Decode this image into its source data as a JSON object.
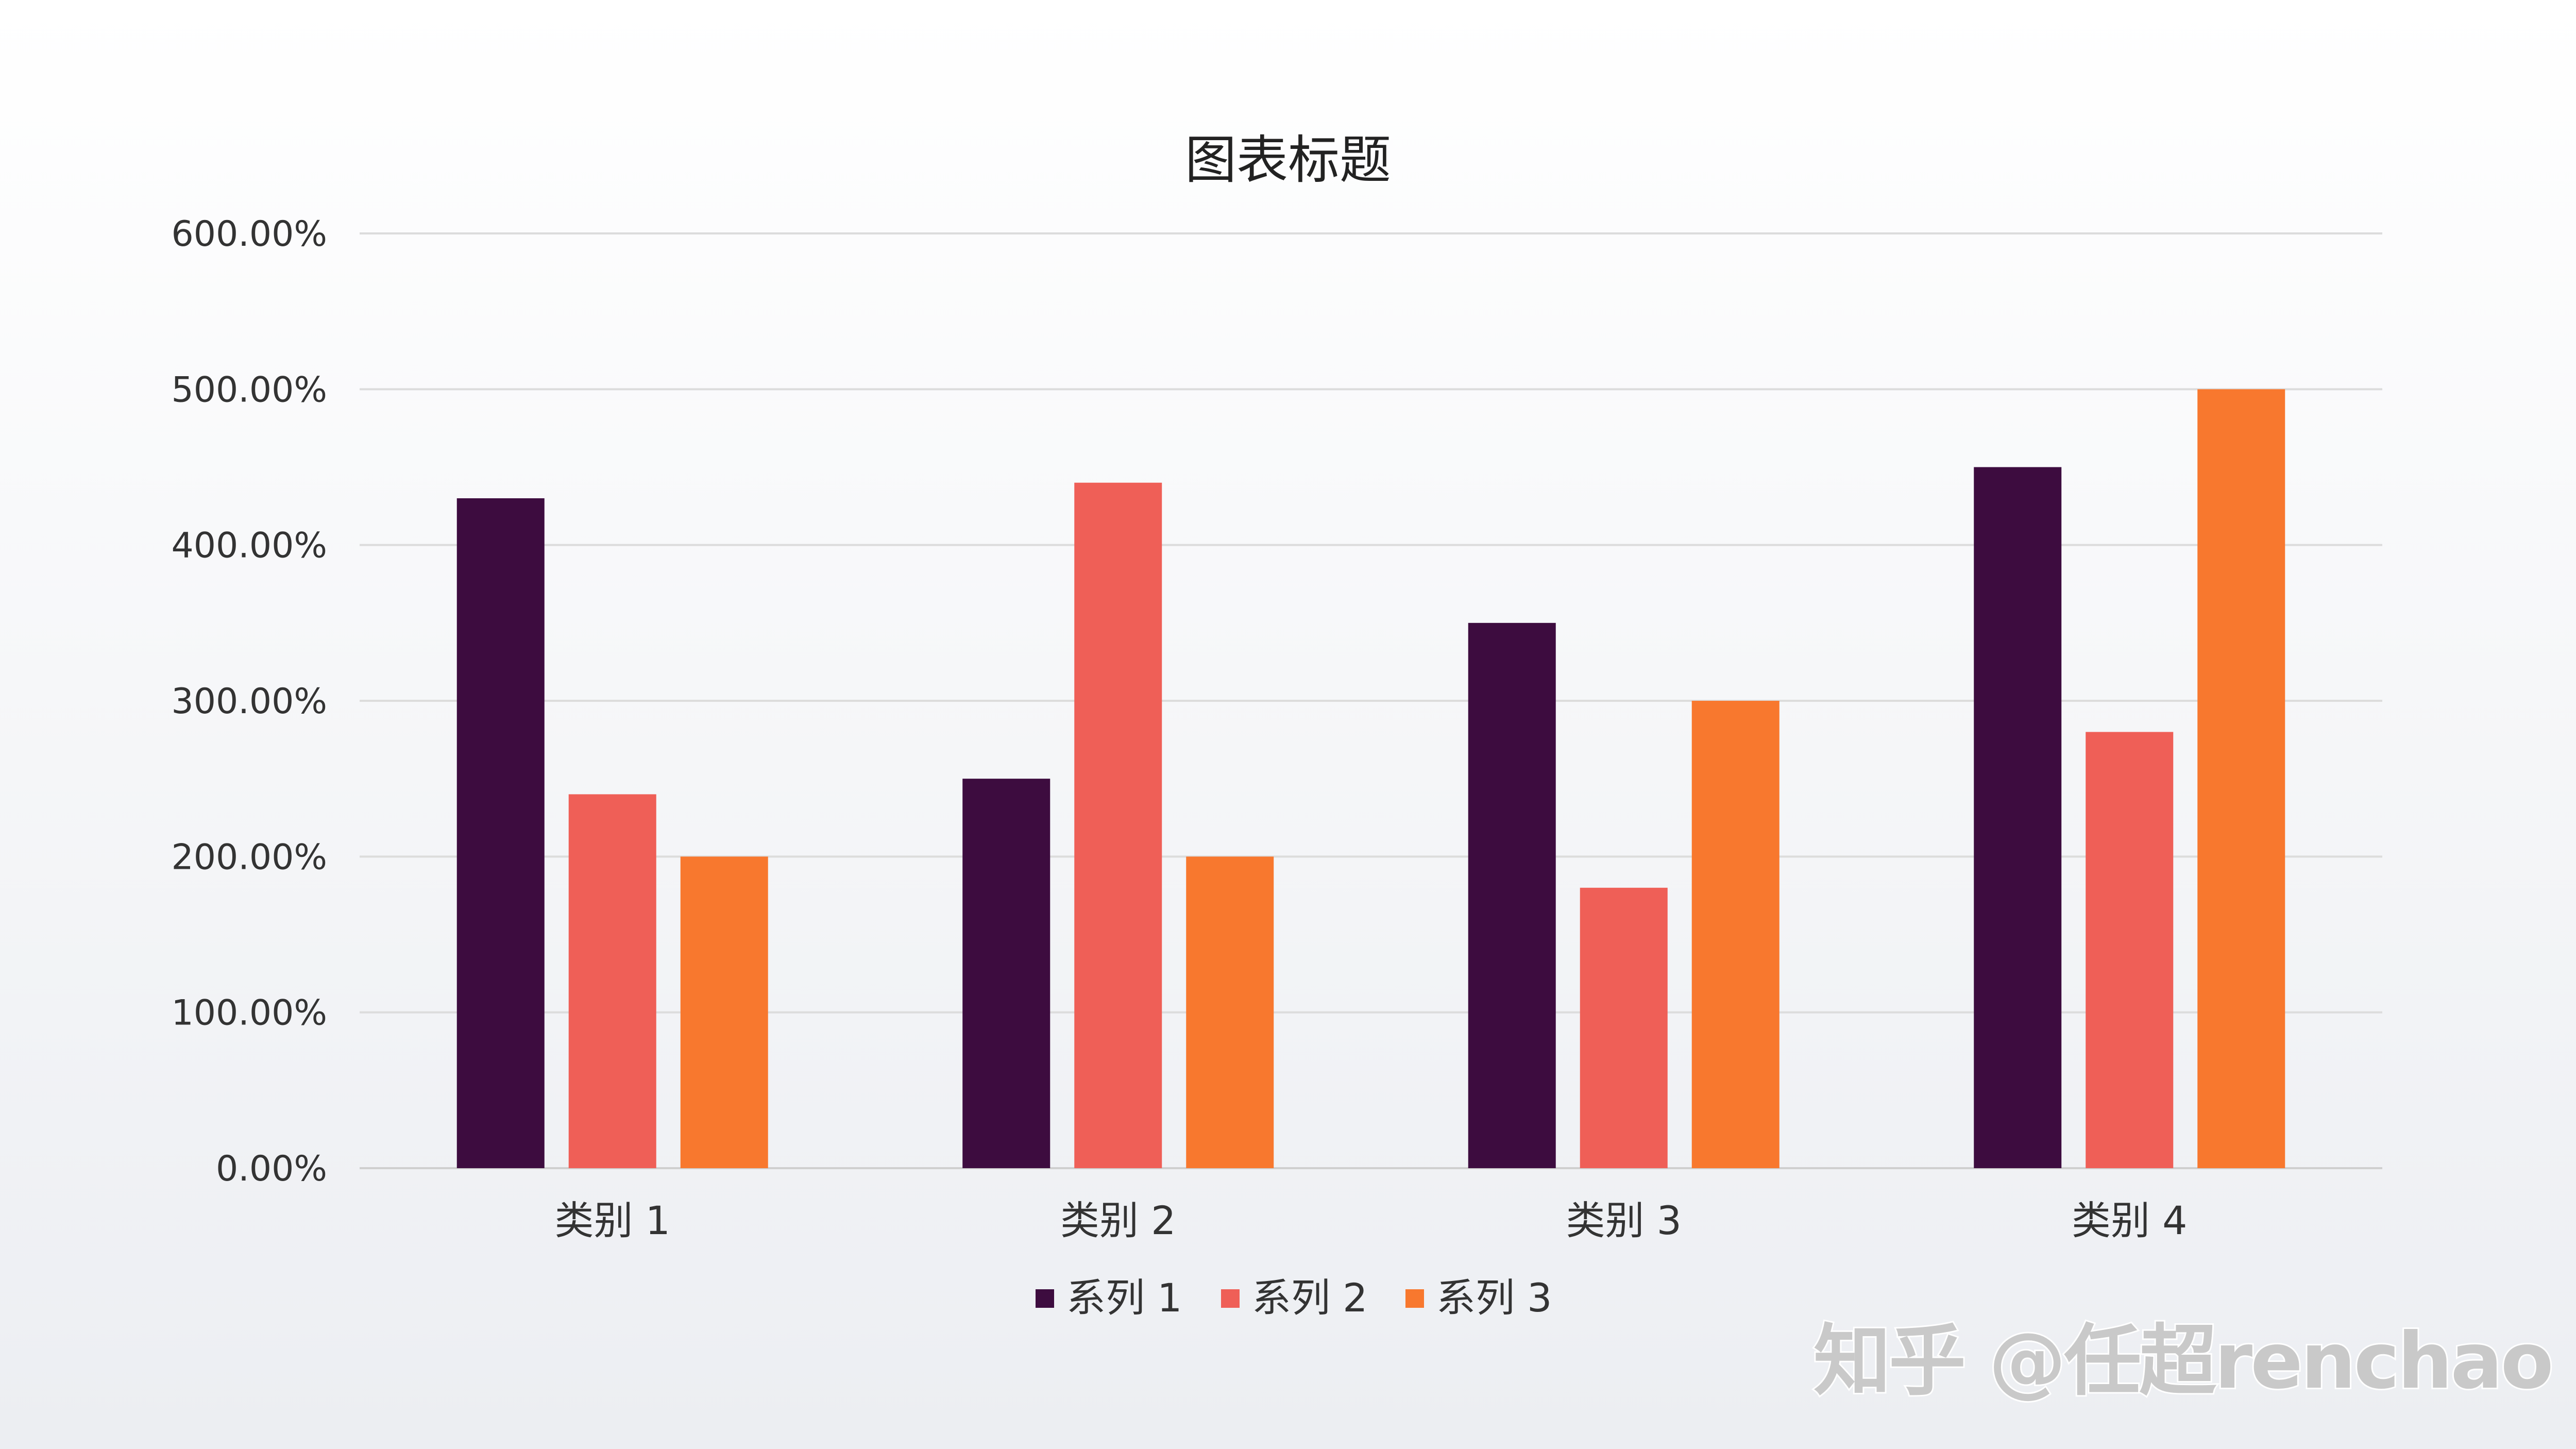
{
  "chart_data": {
    "type": "bar",
    "title": "图表标题",
    "categories": [
      "类别 1",
      "类别 2",
      "类别 3",
      "类别 4"
    ],
    "series": [
      {
        "name": "系列 1",
        "values": [
          4.3,
          2.5,
          3.5,
          4.5
        ],
        "color": "#3d0c3f"
      },
      {
        "name": "系列 2",
        "values": [
          2.4,
          4.4,
          1.8,
          2.8
        ],
        "color": "#ef5f57"
      },
      {
        "name": "系列 3",
        "values": [
          2.0,
          2.0,
          3.0,
          5.0
        ],
        "color": "#f8782e"
      }
    ],
    "ylim": [
      0,
      6
    ],
    "yticks": [
      "0.00%",
      "100.00%",
      "200.00%",
      "300.00%",
      "400.00%",
      "500.00%",
      "600.00%"
    ],
    "grid": true,
    "legend": "bottom"
  },
  "watermark": "知乎 @任超renchao"
}
